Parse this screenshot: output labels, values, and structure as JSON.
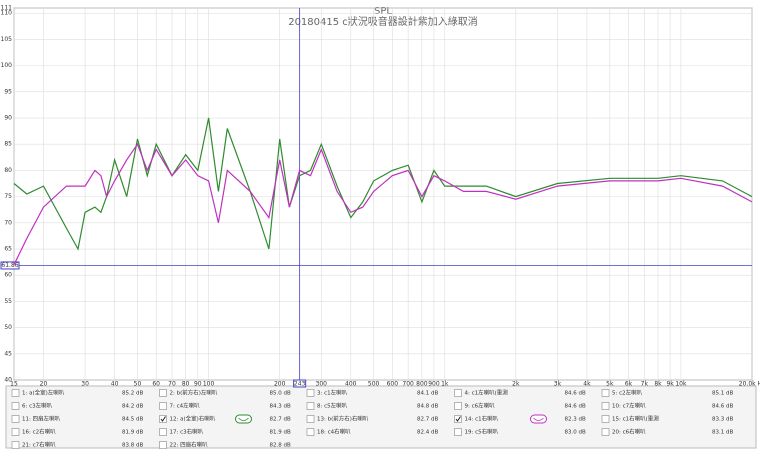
{
  "chart_data": {
    "type": "line",
    "title": "SPL",
    "subtitle": "20180415  c狀況吸音器設計紫加入綠取消",
    "x": [
      15,
      17,
      20,
      25,
      28,
      30,
      33,
      35,
      37,
      40,
      45,
      50,
      55,
      60,
      70,
      80,
      90,
      100,
      110,
      120,
      150,
      180,
      200,
      220,
      243,
      270,
      300,
      350,
      400,
      450,
      500,
      600,
      700,
      800,
      900,
      1000,
      1200,
      1500,
      2000,
      3000,
      5000,
      8000,
      10000,
      15000,
      20000
    ],
    "series": [
      {
        "color": "#2e8b2e",
        "values": [
          77.5,
          75.5,
          77,
          69,
          65,
          72,
          73,
          72,
          75,
          82,
          75,
          86,
          79,
          85,
          79,
          83,
          80,
          90,
          76,
          88,
          76,
          65,
          86,
          73,
          79,
          80,
          85,
          77,
          71,
          74,
          78,
          80,
          81,
          74,
          80,
          77,
          77,
          77,
          75,
          77.5,
          78.5,
          78.5,
          79,
          78,
          75
        ]
      },
      {
        "color": "#c030c0",
        "values": [
          62,
          67,
          73,
          77,
          77,
          77,
          80,
          79,
          75,
          78,
          82,
          85,
          80,
          84,
          79,
          82,
          79,
          78,
          70,
          80,
          76,
          71,
          82,
          73,
          80,
          79,
          84,
          76,
          72,
          73,
          76,
          79,
          80,
          75,
          79,
          78,
          76,
          76,
          74.5,
          77,
          78,
          78,
          78.5,
          77,
          74
        ]
      }
    ],
    "xlim": [
      15,
      20000
    ],
    "log_x": true,
    "xticks": [
      15,
      20,
      30,
      40,
      50,
      60,
      70,
      80,
      90,
      100,
      200,
      300,
      400,
      500,
      600,
      700,
      800,
      900,
      {
        "value": 1000,
        "label": "1k"
      },
      {
        "value": 2000,
        "label": "2k"
      },
      {
        "value": 3000,
        "label": "3k"
      },
      {
        "value": 4000,
        "label": "4k"
      },
      {
        "value": 5000,
        "label": "5k"
      },
      {
        "value": 6000,
        "label": "6k"
      },
      {
        "value": 7000,
        "label": "7k"
      },
      {
        "value": 8000,
        "label": "8k"
      },
      {
        "value": 9000,
        "label": "9k"
      },
      {
        "value": 10000,
        "label": "10k"
      },
      {
        "value": 20000,
        "label": "20.0k Hz"
      }
    ],
    "ylim": [
      40,
      111
    ],
    "yticks": [
      40,
      45,
      50,
      55,
      60,
      65,
      70,
      75,
      80,
      85,
      90,
      95,
      100,
      105,
      110,
      111
    ],
    "grid": true,
    "cursor_x": 243,
    "cursor_y": 61.86,
    "cursor_color": "#4040c8"
  },
  "legend_table": {
    "items": [
      {
        "label": "1: a(全室)左喇叭",
        "level": "85.2 dB",
        "color": "#8b1a1a",
        "checked": false
      },
      {
        "label": "2: b(前方右)左喇叭",
        "level": "85.0 dB",
        "color": "#8b6a00",
        "checked": false
      },
      {
        "label": "3: c1左喇叭",
        "level": "84.1 dB",
        "color": "#5a3a8a",
        "checked": false
      },
      {
        "label": "4: c1左喇叭(重測",
        "level": "84.6 dB",
        "color": "#8b2252",
        "checked": false
      },
      {
        "label": "5: c2左喇叭",
        "level": "85.1 dB",
        "color": "#1a7a7a",
        "checked": false
      },
      {
        "label": "6: c3左喇叭",
        "level": "84.2 dB",
        "color": "#c07a00",
        "checked": false
      },
      {
        "label": "7: c4左喇叭",
        "level": "84.3 dB",
        "color": "#2e8b2e",
        "checked": false
      },
      {
        "label": "8: c5左喇叭",
        "level": "84.8 dB",
        "color": "#6a3aaa",
        "checked": false
      },
      {
        "label": "9: c6左喇叭",
        "level": "84.6 dB",
        "color": "#8b2252",
        "checked": false
      },
      {
        "label": "10: c7左喇叭",
        "level": "84.6 dB",
        "color": "#1a7a7a",
        "checked": false
      },
      {
        "label": "11: 四扇左喇叭",
        "level": "84.5 dB",
        "color": "#8b1a1a",
        "checked": false
      },
      {
        "label": "12: a(全室)右喇叭",
        "level": "82.7 dB",
        "color": "#2e8b2e",
        "checked": true
      },
      {
        "label": "13: b(前方右)右喇叭",
        "level": "82.7 dB",
        "color": "#5a3a8a",
        "checked": false
      },
      {
        "label": "14: c1右喇叭",
        "level": "82.3 dB",
        "color": "#c030c0",
        "checked": true
      },
      {
        "label": "15: c1右喇叭(重測",
        "level": "83.3 dB",
        "color": "#1a7a7a",
        "checked": false
      },
      {
        "label": "16: c2右喇叭",
        "level": "81.9 dB",
        "color": "#c07a00",
        "checked": false
      },
      {
        "label": "17: c3右喇叭",
        "level": "81.9 dB",
        "color": "#2e8b2e",
        "checked": false
      },
      {
        "label": "18: c4右喇叭",
        "level": "82.4 dB",
        "color": "#6a3aaa",
        "checked": false
      },
      {
        "label": "19: c5右喇叭",
        "level": "83.0 dB",
        "color": "#8b2252",
        "checked": false
      },
      {
        "label": "20: c6右喇叭",
        "level": "83.1 dB",
        "color": "#1a7a7a",
        "checked": false
      },
      {
        "label": "21: c7右喇叭",
        "level": "83.8 dB",
        "color": "#8b1a1a",
        "checked": false
      },
      {
        "label": "22: 四扇右喇叭",
        "level": "82.8 dB",
        "color": "#2e8b2e",
        "checked": false
      }
    ]
  }
}
